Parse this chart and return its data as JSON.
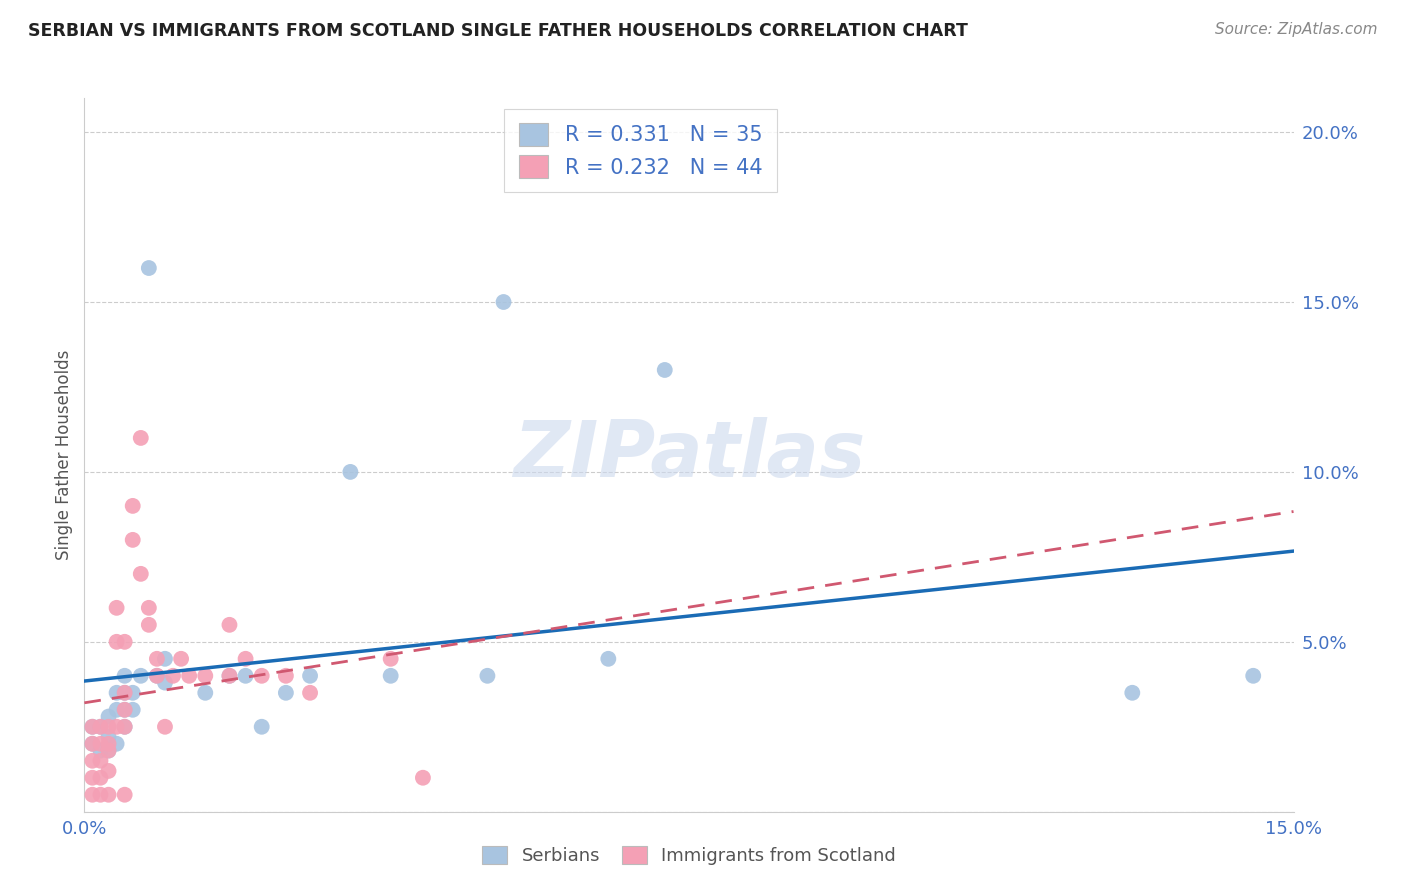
{
  "title": "SERBIAN VS IMMIGRANTS FROM SCOTLAND SINGLE FATHER HOUSEHOLDS CORRELATION CHART",
  "source": "Source: ZipAtlas.com",
  "ylabel": "Single Father Households",
  "xlim": [
    0.0,
    0.15
  ],
  "ylim": [
    0.0,
    0.21
  ],
  "serbian_color": "#a8c4e0",
  "immigrant_color": "#f4a0b5",
  "serbian_line_color": "#1a6bb5",
  "immigrant_line_color": "#d05870",
  "watermark_text": "ZIPatlas",
  "legend1_label": "R = 0.331   N = 35",
  "legend2_label": "R = 0.232   N = 44",
  "bottom_legend1": "Serbians",
  "bottom_legend2": "Immigrants from Scotland",
  "serbian_x": [
    0.001,
    0.001,
    0.002,
    0.002,
    0.003,
    0.003,
    0.003,
    0.004,
    0.004,
    0.004,
    0.005,
    0.005,
    0.005,
    0.005,
    0.006,
    0.006,
    0.007,
    0.008,
    0.009,
    0.01,
    0.01,
    0.015,
    0.018,
    0.02,
    0.022,
    0.025,
    0.028,
    0.033,
    0.038,
    0.05,
    0.052,
    0.065,
    0.072,
    0.13,
    0.145
  ],
  "serbian_y": [
    0.02,
    0.025,
    0.018,
    0.025,
    0.018,
    0.022,
    0.028,
    0.02,
    0.03,
    0.035,
    0.025,
    0.03,
    0.035,
    0.04,
    0.03,
    0.035,
    0.04,
    0.16,
    0.04,
    0.038,
    0.045,
    0.035,
    0.04,
    0.04,
    0.025,
    0.035,
    0.04,
    0.1,
    0.04,
    0.04,
    0.15,
    0.045,
    0.13,
    0.035,
    0.04
  ],
  "immigrant_x": [
    0.001,
    0.001,
    0.001,
    0.001,
    0.001,
    0.002,
    0.002,
    0.002,
    0.002,
    0.002,
    0.003,
    0.003,
    0.003,
    0.003,
    0.003,
    0.004,
    0.004,
    0.004,
    0.005,
    0.005,
    0.005,
    0.005,
    0.005,
    0.006,
    0.006,
    0.007,
    0.007,
    0.008,
    0.008,
    0.009,
    0.009,
    0.01,
    0.011,
    0.012,
    0.013,
    0.015,
    0.018,
    0.018,
    0.02,
    0.022,
    0.025,
    0.028,
    0.038,
    0.042
  ],
  "immigrant_y": [
    0.02,
    0.015,
    0.025,
    0.01,
    0.005,
    0.02,
    0.025,
    0.015,
    0.01,
    0.005,
    0.02,
    0.025,
    0.018,
    0.012,
    0.005,
    0.025,
    0.05,
    0.06,
    0.025,
    0.03,
    0.035,
    0.05,
    0.005,
    0.08,
    0.09,
    0.07,
    0.11,
    0.055,
    0.06,
    0.04,
    0.045,
    0.025,
    0.04,
    0.045,
    0.04,
    0.04,
    0.055,
    0.04,
    0.045,
    0.04,
    0.04,
    0.035,
    0.045,
    0.01
  ]
}
